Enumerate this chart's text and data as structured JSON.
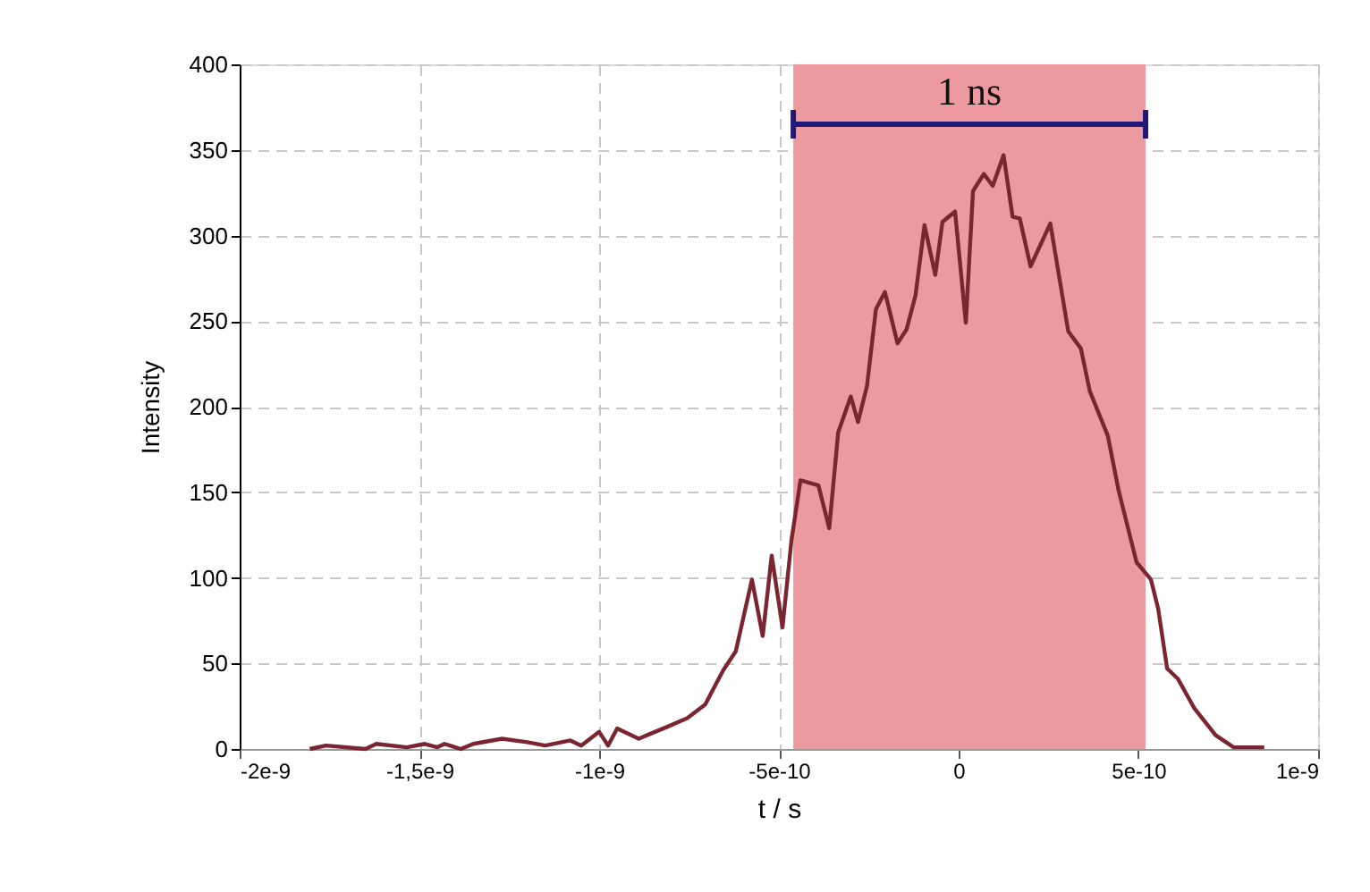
{
  "chart_data": {
    "type": "line",
    "xlabel": "t  / s",
    "ylabel": "Intensity",
    "xlim": [
      -2e-09,
      1e-09
    ],
    "xticks": [
      {
        "value": -2e-09,
        "label": "-2e-9"
      },
      {
        "value": -1.5e-09,
        "label": "-1,5e-9"
      },
      {
        "value": -1e-09,
        "label": "-1e-9"
      },
      {
        "value": -5e-10,
        "label": "-5e-10"
      },
      {
        "value": 0,
        "label": "0"
      },
      {
        "value": 5e-10,
        "label": "5e-10"
      },
      {
        "value": 1e-09,
        "label": "1e-9"
      }
    ],
    "ylim": [
      0,
      400
    ],
    "yticks": [
      0,
      50,
      100,
      150,
      200,
      250,
      300,
      350,
      400
    ],
    "grid": true,
    "marker": "none",
    "line_style": "solid",
    "bands": [
      {
        "axis": "x",
        "from": -4.6e-10,
        "to": 5.2e-10,
        "label": "1 ns",
        "color": "#ec9a9f"
      }
    ],
    "series": [
      {
        "color": "#7b2530",
        "x": [
          -1.805e-09,
          -1.76e-09,
          -1.65e-09,
          -1.62e-09,
          -1.535e-09,
          -1.485e-09,
          -1.45e-09,
          -1.43e-09,
          -1.385e-09,
          -1.35e-09,
          -1.27e-09,
          -1.2e-09,
          -1.15e-09,
          -1.08e-09,
          -1.05e-09,
          -1e-09,
          -9.75e-10,
          -9.5e-10,
          -8.9e-10,
          -8.45e-10,
          -8.1e-10,
          -7.55e-10,
          -7.05e-10,
          -6.55e-10,
          -6.2e-10,
          -5.75e-10,
          -5.45e-10,
          -5.2e-10,
          -4.9e-10,
          -4.65e-10,
          -4.4e-10,
          -3.9e-10,
          -3.6e-10,
          -3.35e-10,
          -3e-10,
          -2.8e-10,
          -2.55e-10,
          -2.3e-10,
          -2.05e-10,
          -1.7e-10,
          -1.45e-10,
          -1.2e-10,
          -9.5e-11,
          -6.5e-11,
          -4.5e-11,
          -1e-11,
          2e-11,
          4e-11,
          7e-11,
          9.5e-11,
          1.25e-10,
          1.5e-10,
          1.7e-10,
          2e-10,
          2.55e-10,
          3.05e-10,
          3.4e-10,
          3.65e-10,
          4.15e-10,
          4.45e-10,
          4.95e-10,
          5.35e-10,
          5.55e-10,
          5.8e-10,
          6.1e-10,
          6.55e-10,
          7.15e-10,
          7.65e-10,
          8.5e-10
        ],
        "values": [
          0,
          2,
          0,
          3,
          1,
          3,
          1,
          3,
          0,
          3,
          6,
          4,
          2,
          5,
          2,
          10,
          2,
          12,
          6,
          10,
          13,
          18,
          26,
          46,
          57,
          99,
          66,
          113,
          71,
          122,
          157,
          154,
          129,
          185,
          206,
          191,
          212,
          257,
          267,
          237,
          245,
          265,
          306,
          277,
          308,
          314,
          249,
          326,
          336,
          329,
          347,
          311,
          310,
          282,
          307,
          244,
          234,
          209,
          183,
          151,
          109,
          99,
          82,
          47,
          41,
          24,
          8,
          1,
          1
        ]
      }
    ]
  }
}
